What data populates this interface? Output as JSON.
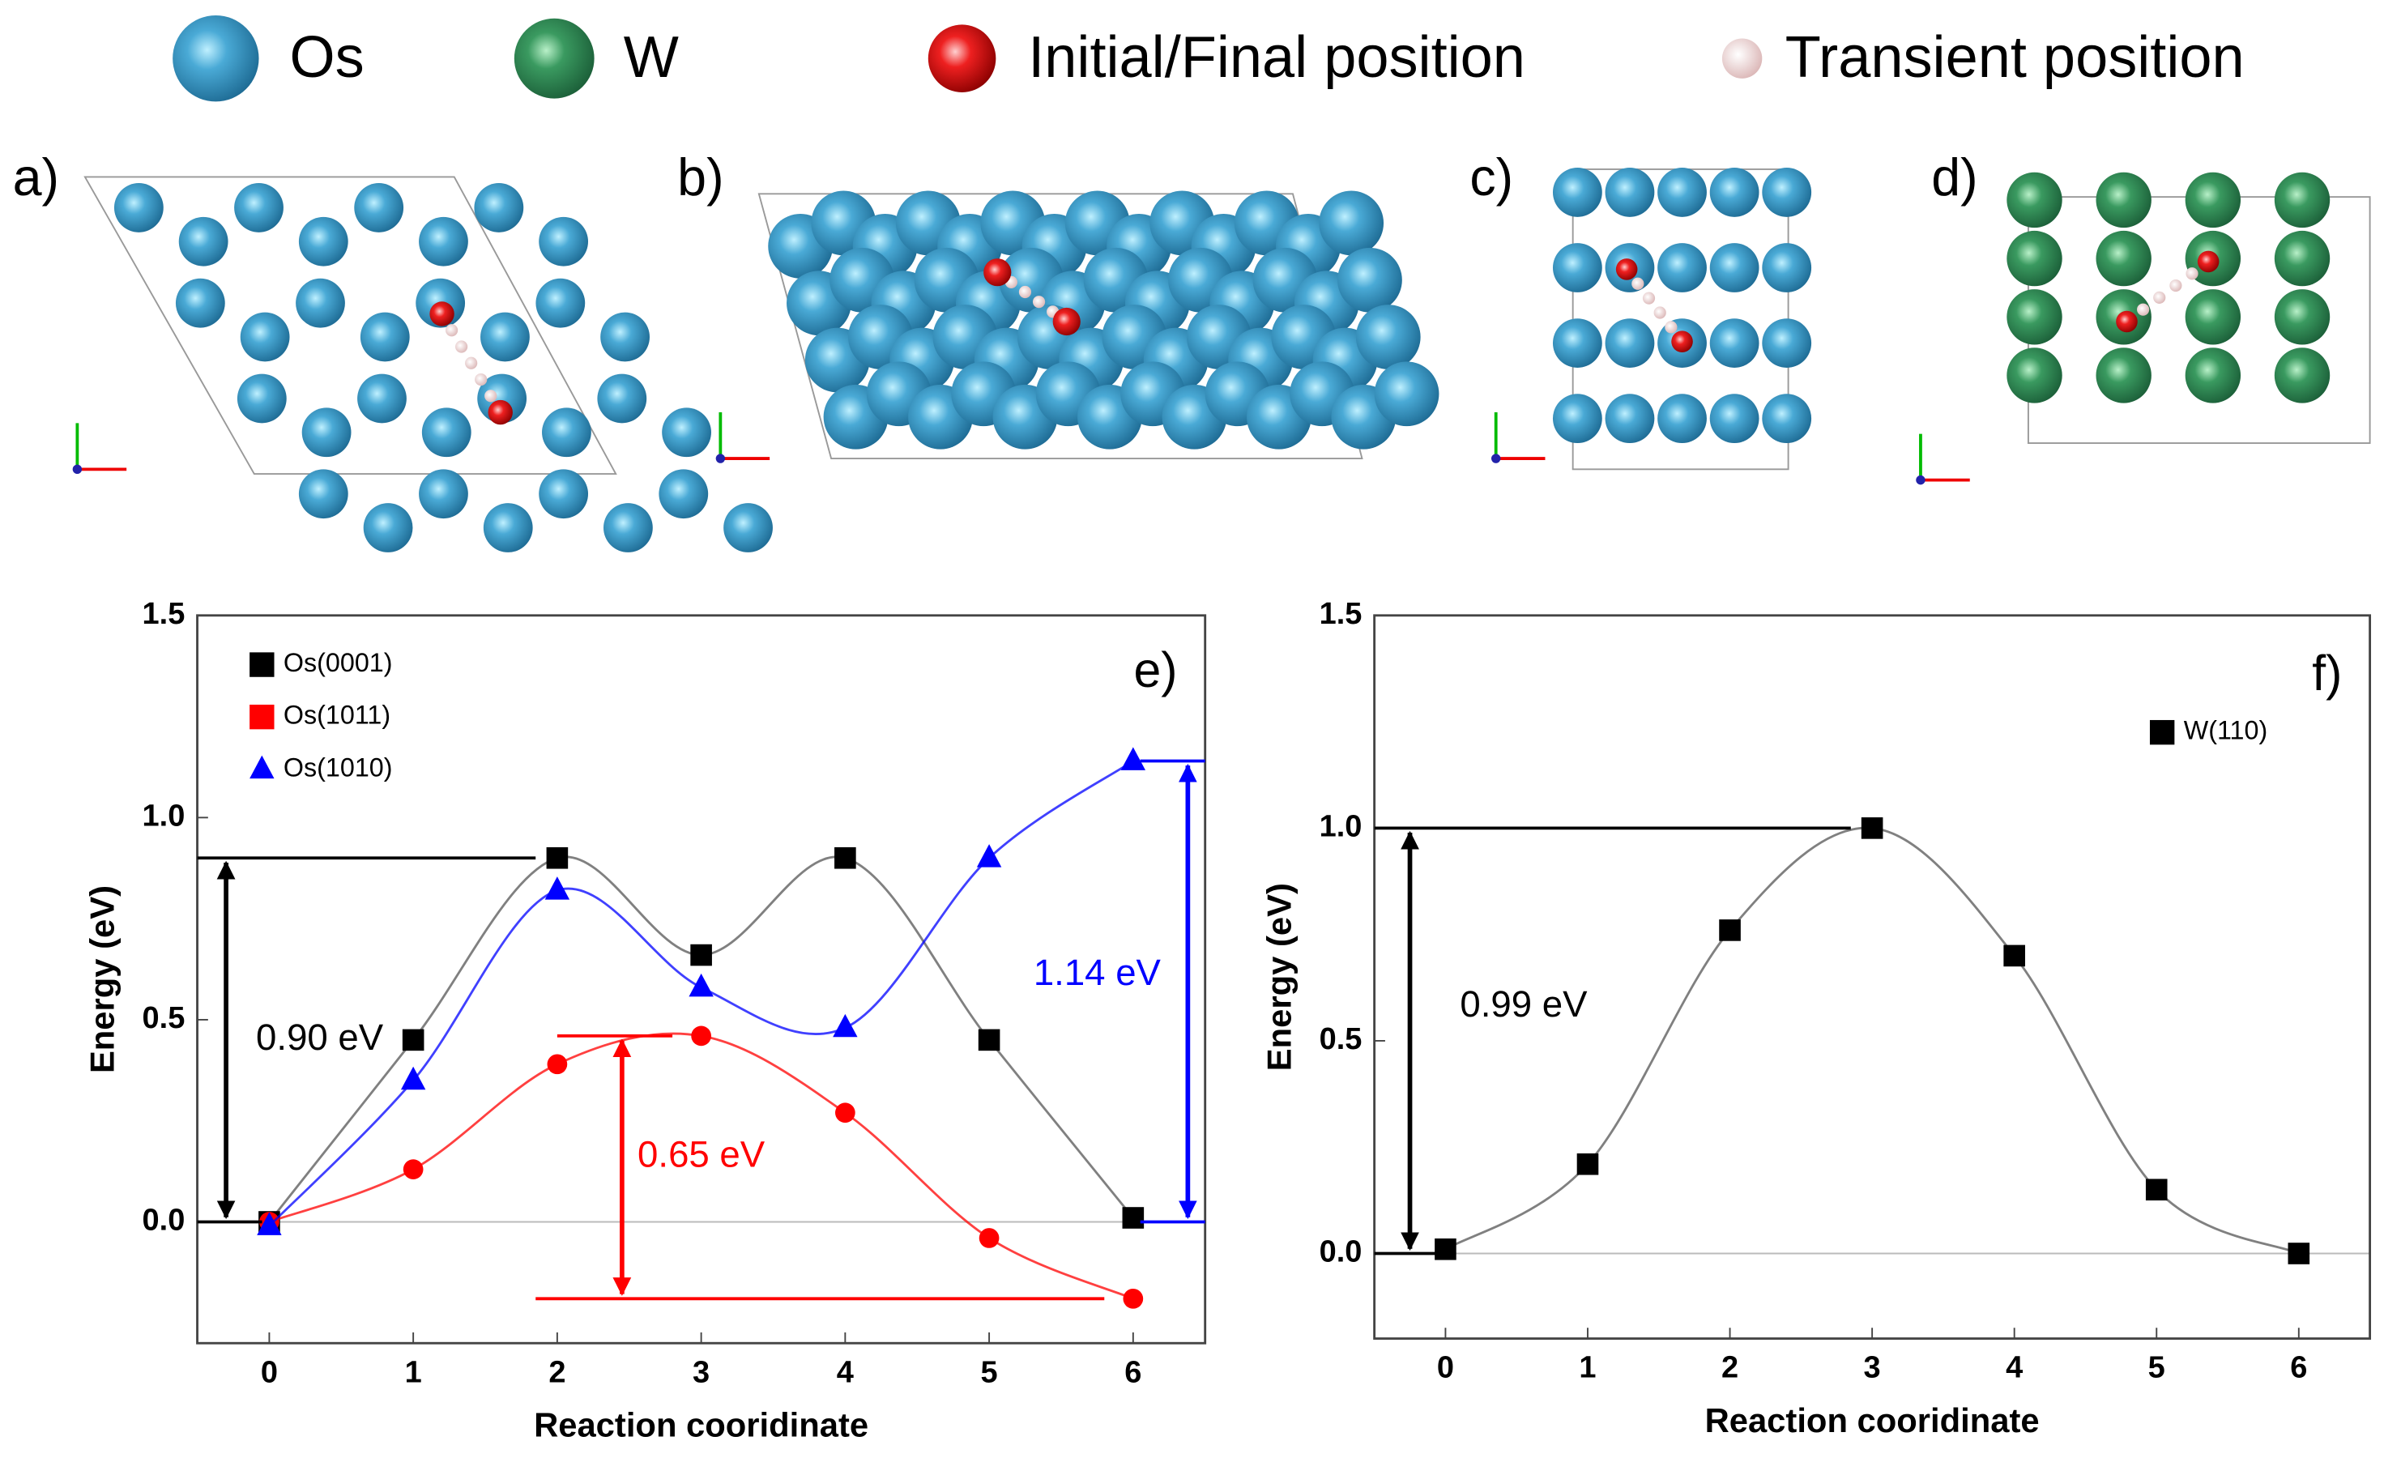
{
  "legend_top": {
    "items": [
      "Os",
      "W",
      "Initial/Final position",
      "Transient position"
    ]
  },
  "panels": [
    "a)",
    "b)",
    "c)",
    "d)"
  ],
  "chart_data": [
    {
      "type": "line",
      "label": "e)",
      "xlabel": "Reaction cooridinate",
      "ylabel": "Energy (eV)",
      "x": [
        0,
        1,
        2,
        3,
        4,
        5,
        6
      ],
      "xlim": [
        -0.5,
        6.5
      ],
      "xticks": [
        0,
        1,
        2,
        3,
        4,
        5,
        6
      ],
      "ylim": [
        -0.3,
        1.5
      ],
      "yticks": [
        {
          "value": 0,
          "label": "0.0"
        },
        0.5,
        {
          "value": 1,
          "label": "1.0"
        },
        1.5
      ],
      "series": [
        {
          "name": "Os(0001)",
          "color": "#000000",
          "marker": "square",
          "values": [
            0,
            0.45,
            0.9,
            0.66,
            0.9,
            0.45,
            0.01
          ]
        },
        {
          "name": "Os(1011)",
          "color": "#ff0000",
          "marker": "circle",
          "values": [
            0,
            0.13,
            0.39,
            0.46,
            0.27,
            -0.04,
            -0.19
          ]
        },
        {
          "name": "Os(1010)",
          "color": "#0000ff",
          "marker": "triangle",
          "values": [
            -0.01,
            0.35,
            0.82,
            0.58,
            0.48,
            0.9,
            1.14
          ]
        }
      ],
      "annotations": [
        "0.90 eV",
        "0.65 eV",
        "1.14 eV"
      ]
    },
    {
      "type": "line",
      "label": "f)",
      "xlabel": "Reaction cooridinate",
      "ylabel": "Energy (eV)",
      "x": [
        0,
        1,
        2,
        3,
        4,
        5,
        6
      ],
      "xlim": [
        -0.5,
        6.5
      ],
      "xticks": [
        0,
        1,
        2,
        3,
        4,
        5,
        6
      ],
      "ylim": [
        -0.2,
        1.5
      ],
      "yticks": [
        {
          "value": 0,
          "label": "0.0"
        },
        0.5,
        {
          "value": 1,
          "label": "1.0"
        },
        1.5
      ],
      "series": [
        {
          "name": "W(110)",
          "color": "#000000",
          "marker": "square",
          "values": [
            0.01,
            0.21,
            0.76,
            1.0,
            0.7,
            0.15,
            0.0
          ]
        }
      ],
      "annotations": [
        "0.99 eV"
      ]
    }
  ]
}
